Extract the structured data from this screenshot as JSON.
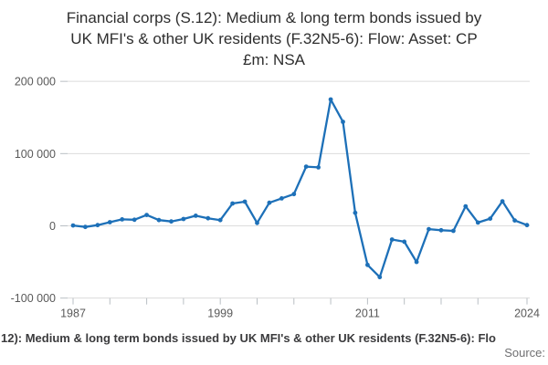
{
  "title": {
    "lines": [
      "Financial corps (S.12): Medium & long term bonds issued by",
      "UK MFI's & other UK residents (F.32N5-6): Flow: Asset: CP",
      "£m: NSA"
    ]
  },
  "footer": {
    "caption_visible": "12): Medium & long term bonds issued by UK MFI's & other UK residents (F.32N5-6): Flo",
    "source_label": "Source:"
  },
  "colors": {
    "line": "#1d70b8",
    "grid": "#dcdcdc",
    "tick": "#b9bfc4",
    "axis_label": "#595959"
  },
  "chart_data": {
    "type": "line",
    "title": "Financial corps (S.12): Medium & long term bonds issued by UK MFI's & other UK residents (F.32N5-6): Flow: Asset: CP £m: NSA",
    "xlabel": "",
    "ylabel": "",
    "units": "£m",
    "grid": true,
    "legend": false,
    "markers": true,
    "xlim": [
      1987,
      2024
    ],
    "ylim": [
      -100000,
      200000
    ],
    "x": [
      1987,
      1988,
      1989,
      1990,
      1991,
      1992,
      1993,
      1994,
      1995,
      1996,
      1997,
      1998,
      1999,
      2000,
      2001,
      2002,
      2003,
      2004,
      2005,
      2006,
      2007,
      2008,
      2009,
      2010,
      2011,
      2012,
      2013,
      2014,
      2015,
      2016,
      2017,
      2018,
      2019,
      2020,
      2021,
      2022,
      2023,
      2024
    ],
    "values": [
      500,
      -1500,
      1000,
      5000,
      9000,
      8500,
      15000,
      8000,
      6000,
      9500,
      14000,
      10500,
      8000,
      31000,
      33500,
      4000,
      32000,
      38000,
      44000,
      82000,
      81000,
      175000,
      144000,
      18000,
      -54000,
      -71000,
      -19000,
      -22000,
      -50000,
      -4500,
      -6000,
      -7000,
      27000,
      4500,
      10000,
      34000,
      7500,
      1000
    ],
    "yticks": {
      "values": [
        200000,
        100000,
        0,
        -100000
      ],
      "labels": [
        "200 000",
        "100 000",
        "0",
        "-100 000"
      ]
    },
    "xticks": {
      "values": [
        1987,
        1990,
        1993,
        1996,
        1999,
        2002,
        2005,
        2008,
        2011,
        2014,
        2017,
        2020,
        2024
      ],
      "labeled": [
        {
          "value": 1987,
          "label": "1987"
        },
        {
          "value": 1999,
          "label": "1999"
        },
        {
          "value": 2011,
          "label": "2011"
        },
        {
          "value": 2024,
          "label": "2024"
        }
      ]
    }
  }
}
